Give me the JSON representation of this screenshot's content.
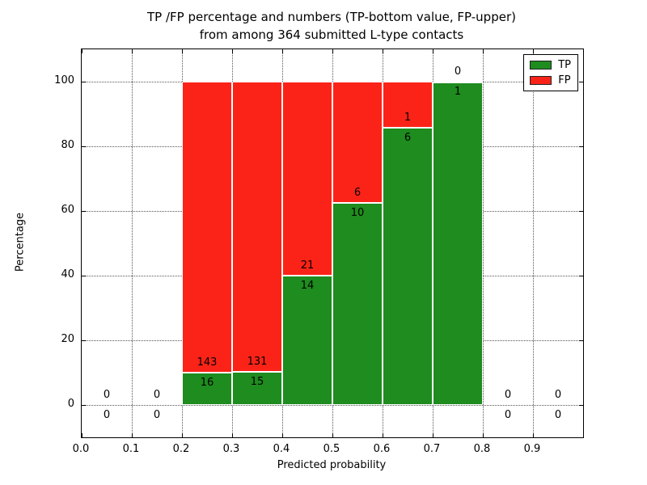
{
  "title": {
    "line1": "TP /FP percentage and numbers (TP-bottom value, FP-upper)",
    "line2": "from among 364 submitted L-type contacts"
  },
  "legend": {
    "tp_label": "TP",
    "fp_label": "FP",
    "position": "upper right"
  },
  "colors": {
    "tp": "#1e8c1e",
    "fp": "#fb2318",
    "grid": "#555555",
    "frame": "#000000"
  },
  "chart_data": {
    "type": "bar",
    "stacked": true,
    "title": "TP /FP percentage and numbers (TP-bottom value, FP-upper) from among 364 submitted L-type contacts",
    "xlabel": "Predicted probability",
    "ylabel": "Percentage",
    "xlim": [
      0.0,
      1.0
    ],
    "ylim": [
      -10,
      110
    ],
    "grid": true,
    "legend_position": "upper right",
    "xticks": [
      "0.0",
      "0.1",
      "0.2",
      "0.3",
      "0.4",
      "0.5",
      "0.6",
      "0.7",
      "0.8",
      "0.9"
    ],
    "yticks": [
      0,
      20,
      40,
      60,
      80,
      100
    ],
    "total_contacts": 364,
    "series": [
      {
        "name": "TP",
        "color": "#1e8c1e"
      },
      {
        "name": "FP",
        "color": "#fb2318"
      }
    ],
    "bins": [
      {
        "range": [
          0.0,
          0.1
        ],
        "tp": 0,
        "fp": 0
      },
      {
        "range": [
          0.1,
          0.2
        ],
        "tp": 0,
        "fp": 0
      },
      {
        "range": [
          0.2,
          0.3
        ],
        "tp": 16,
        "fp": 143
      },
      {
        "range": [
          0.3,
          0.4
        ],
        "tp": 15,
        "fp": 131
      },
      {
        "range": [
          0.4,
          0.5
        ],
        "tp": 14,
        "fp": 21
      },
      {
        "range": [
          0.5,
          0.6
        ],
        "tp": 10,
        "fp": 6
      },
      {
        "range": [
          0.6,
          0.7
        ],
        "tp": 6,
        "fp": 1
      },
      {
        "range": [
          0.7,
          0.8
        ],
        "tp": 1,
        "fp": 0
      },
      {
        "range": [
          0.8,
          0.9
        ],
        "tp": 0,
        "fp": 0
      },
      {
        "range": [
          0.9,
          1.0
        ],
        "tp": 0,
        "fp": 0
      }
    ]
  }
}
